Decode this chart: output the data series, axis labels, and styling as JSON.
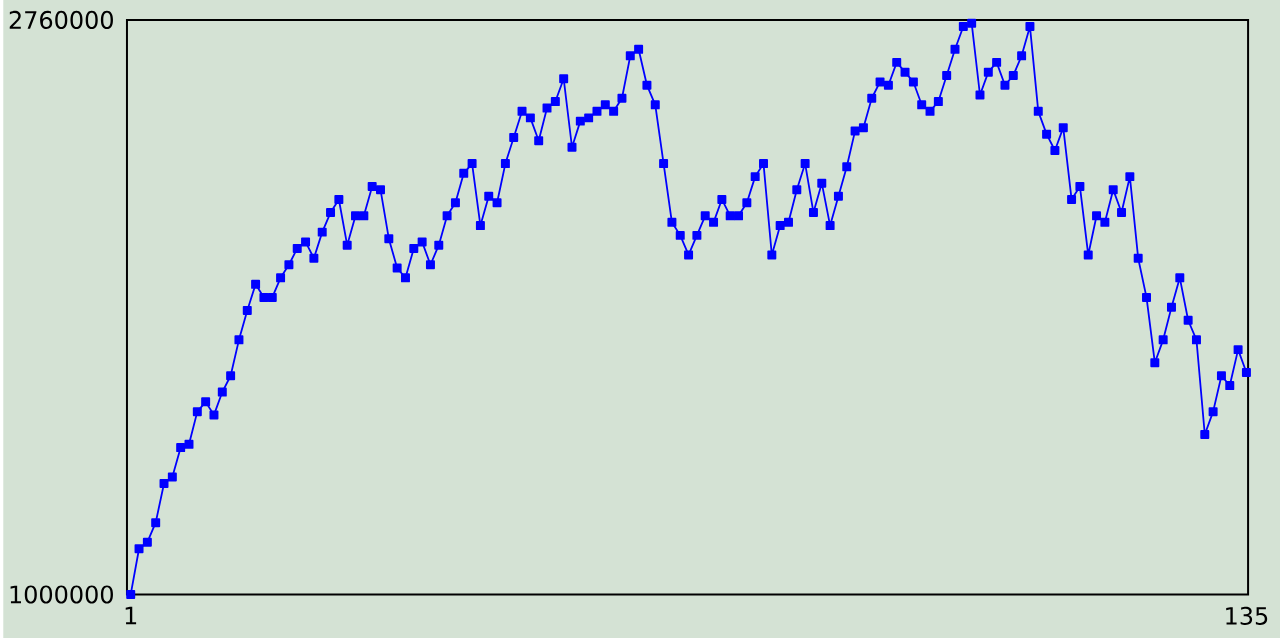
{
  "chart_data": {
    "type": "line",
    "color": "#0000ff",
    "marker": "square",
    "line_style": "solid",
    "x": [
      1,
      2,
      3,
      4,
      5,
      6,
      7,
      8,
      9,
      10,
      11,
      12,
      13,
      14,
      15,
      16,
      17,
      18,
      19,
      20,
      21,
      22,
      23,
      24,
      25,
      26,
      27,
      28,
      29,
      30,
      31,
      32,
      33,
      34,
      35,
      36,
      37,
      38,
      39,
      40,
      41,
      42,
      43,
      44,
      45,
      46,
      47,
      48,
      49,
      50,
      51,
      52,
      53,
      54,
      55,
      56,
      57,
      58,
      59,
      60,
      61,
      62,
      63,
      64,
      65,
      66,
      67,
      68,
      69,
      70,
      71,
      72,
      73,
      74,
      75,
      76,
      77,
      78,
      79,
      80,
      81,
      82,
      83,
      84,
      85,
      86,
      87,
      88,
      89,
      90,
      91,
      92,
      93,
      94,
      95,
      96,
      97,
      98,
      99,
      100,
      101,
      102,
      103,
      104,
      105,
      106,
      107,
      108,
      109,
      110,
      111,
      112,
      113,
      114,
      115,
      116,
      117,
      118,
      119,
      120,
      121,
      122,
      123,
      124,
      125,
      126,
      127,
      128,
      129,
      130,
      131,
      132,
      133,
      134,
      135
    ],
    "values": [
      1000000,
      1140000,
      1160000,
      1220000,
      1340000,
      1360000,
      1450000,
      1460000,
      1560000,
      1590000,
      1550000,
      1620000,
      1670000,
      1780000,
      1870000,
      1950000,
      1910000,
      1910000,
      1970000,
      2010000,
      2060000,
      2080000,
      2030000,
      2110000,
      2170000,
      2210000,
      2070000,
      2160000,
      2160000,
      2250000,
      2240000,
      2090000,
      2000000,
      1970000,
      2060000,
      2080000,
      2010000,
      2070000,
      2160000,
      2200000,
      2290000,
      2320000,
      2130000,
      2220000,
      2200000,
      2320000,
      2400000,
      2480000,
      2460000,
      2390000,
      2490000,
      2510000,
      2580000,
      2370000,
      2450000,
      2460000,
      2480000,
      2500000,
      2480000,
      2520000,
      2650000,
      2670000,
      2560000,
      2500000,
      2320000,
      2140000,
      2100000,
      2040000,
      2100000,
      2160000,
      2140000,
      2210000,
      2160000,
      2160000,
      2200000,
      2280000,
      2320000,
      2040000,
      2130000,
      2140000,
      2240000,
      2320000,
      2170000,
      2260000,
      2130000,
      2220000,
      2310000,
      2420000,
      2430000,
      2520000,
      2570000,
      2560000,
      2630000,
      2600000,
      2570000,
      2500000,
      2480000,
      2510000,
      2590000,
      2670000,
      2740000,
      2750000,
      2530000,
      2600000,
      2630000,
      2560000,
      2590000,
      2650000,
      2740000,
      2480000,
      2410000,
      2360000,
      2430000,
      2210000,
      2250000,
      2040000,
      2160000,
      2140000,
      2240000,
      2170000,
      2280000,
      2030000,
      1910000,
      1710000,
      1780000,
      1880000,
      1970000,
      1840000,
      1780000,
      1490000,
      1560000,
      1670000,
      1640000,
      1750000,
      1680000
    ],
    "xlim": [
      0.55,
      135.2
    ],
    "ylim": [
      1000000,
      2760000
    ],
    "xticks": [
      1,
      135
    ],
    "yticks": [
      1000000,
      2760000
    ]
  }
}
